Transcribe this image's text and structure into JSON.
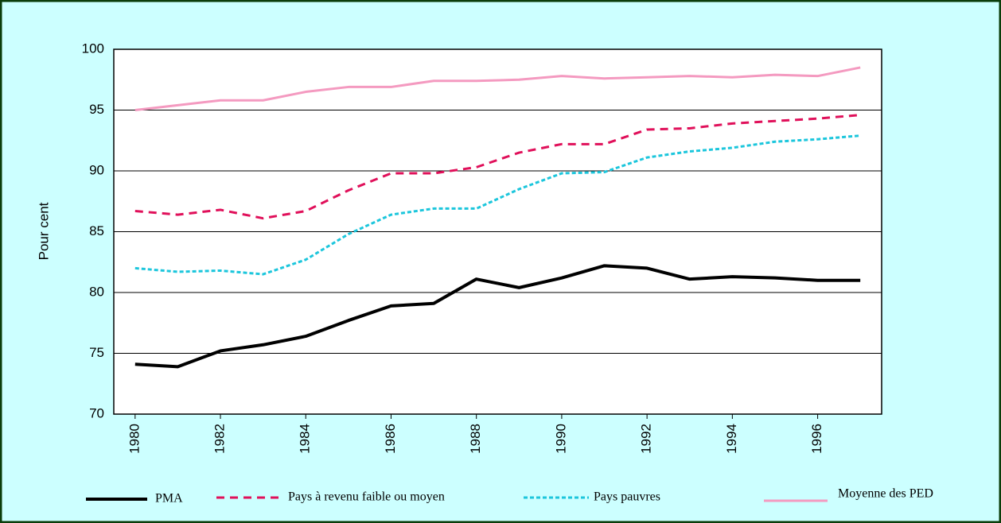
{
  "chart_data": {
    "type": "line",
    "y_label": "Pour cent",
    "x": [
      1980,
      1981,
      1982,
      1983,
      1984,
      1985,
      1986,
      1987,
      1988,
      1989,
      1990,
      1991,
      1992,
      1993,
      1994,
      1995,
      1996,
      1997
    ],
    "xlim": [
      1979.5,
      1997.5
    ],
    "xticks": [
      1980,
      1982,
      1984,
      1986,
      1988,
      1990,
      1992,
      1994,
      1996
    ],
    "ylim": [
      70,
      100
    ],
    "yticks": [
      70,
      75,
      80,
      85,
      90,
      95,
      100
    ],
    "grid": true,
    "legend": "bottom",
    "series": [
      {
        "name": "PMA",
        "color": "#000000",
        "linestyle": "solid",
        "values": [
          74.1,
          73.9,
          75.2,
          75.7,
          76.4,
          77.7,
          78.9,
          79.1,
          81.1,
          80.4,
          81.2,
          82.2,
          82.0,
          81.1,
          81.3,
          81.2,
          81.0,
          81.0
        ]
      },
      {
        "name": "Pays à revenu faible ou moyen",
        "color": "#e0105a",
        "linestyle": "dashed",
        "values": [
          86.7,
          86.4,
          86.8,
          86.1,
          86.7,
          88.4,
          89.8,
          89.8,
          90.3,
          91.5,
          92.2,
          92.2,
          93.4,
          93.5,
          93.9,
          94.1,
          94.3,
          94.6
        ]
      },
      {
        "name": "Pays pauvres",
        "color": "#1cc6dc",
        "linestyle": "dotted",
        "values": [
          82.0,
          81.7,
          81.8,
          81.5,
          82.7,
          84.8,
          86.4,
          86.9,
          86.9,
          88.5,
          89.8,
          89.9,
          91.1,
          91.6,
          91.9,
          92.4,
          92.6,
          92.9
        ]
      },
      {
        "name": "Moyenne des PED",
        "color": "#f49ac0",
        "linestyle": "solid",
        "values": [
          95.0,
          95.4,
          95.8,
          95.8,
          96.5,
          96.9,
          96.9,
          97.4,
          97.4,
          97.5,
          97.8,
          97.6,
          97.7,
          97.8,
          97.7,
          97.9,
          97.8,
          98.5
        ]
      }
    ]
  }
}
